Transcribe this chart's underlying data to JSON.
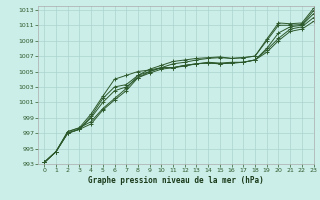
{
  "title": "Graphe pression niveau de la mer (hPa)",
  "background_color": "#cceee8",
  "grid_color": "#aad4ce",
  "line_color": "#2d5a2d",
  "xlim": [
    -0.5,
    23
  ],
  "ylim": [
    993,
    1013.5
  ],
  "xticks": [
    0,
    1,
    2,
    3,
    4,
    5,
    6,
    7,
    8,
    9,
    10,
    11,
    12,
    13,
    14,
    15,
    16,
    17,
    18,
    19,
    20,
    21,
    22,
    23
  ],
  "yticks": [
    993,
    995,
    997,
    999,
    1001,
    1003,
    1005,
    1007,
    1009,
    1011,
    1013
  ],
  "series": [
    [
      993.2,
      994.6,
      997.2,
      997.7,
      998.5,
      1000.2,
      1001.5,
      1002.8,
      1004.5,
      1005.3,
      1005.8,
      1006.3,
      1006.5,
      1006.7,
      1006.8,
      1006.9,
      1006.7,
      1006.8,
      1007.0,
      1009.2,
      1011.3,
      1011.2,
      1011.3,
      1013.2
    ],
    [
      993.2,
      994.6,
      997.0,
      997.5,
      998.2,
      1000.0,
      1001.3,
      1002.5,
      1004.2,
      1005.0,
      1005.5,
      1006.0,
      1006.2,
      1006.5,
      1006.7,
      1006.8,
      1006.7,
      1006.8,
      1007.0,
      1009.0,
      1011.0,
      1011.0,
      1011.1,
      1012.9
    ],
    [
      993.2,
      994.6,
      997.0,
      997.5,
      999.0,
      1001.0,
      1002.5,
      1003.0,
      1004.2,
      1004.8,
      1005.3,
      1005.5,
      1005.7,
      1006.0,
      1006.2,
      1006.1,
      1006.2,
      1006.2,
      1006.5,
      1008.0,
      1010.0,
      1010.8,
      1011.0,
      1012.5
    ],
    [
      993.2,
      994.6,
      997.0,
      997.5,
      999.2,
      1001.5,
      1003.0,
      1003.3,
      1004.5,
      1005.0,
      1005.5,
      1005.5,
      1005.8,
      1006.0,
      1006.1,
      1006.0,
      1006.1,
      1006.2,
      1006.5,
      1007.8,
      1009.3,
      1010.5,
      1010.8,
      1012.0
    ],
    [
      993.2,
      994.6,
      997.2,
      997.7,
      999.5,
      1001.8,
      1004.0,
      1004.5,
      1005.0,
      1005.2,
      1005.5,
      1005.5,
      1005.8,
      1006.0,
      1006.1,
      1006.0,
      1006.1,
      1006.2,
      1006.5,
      1007.5,
      1009.0,
      1010.2,
      1010.5,
      1011.5
    ]
  ]
}
